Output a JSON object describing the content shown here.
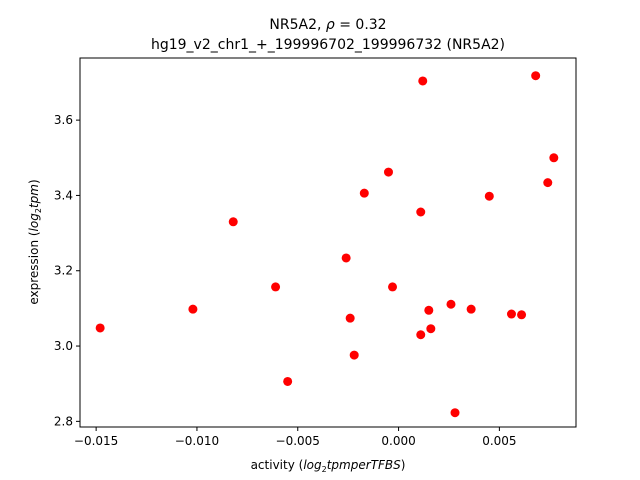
{
  "chart_data": {
    "type": "scatter",
    "title_line1_prefix": "NR5A2, ",
    "title_line1_symbol": "ρ",
    "title_line1_suffix": " = 0.32",
    "title_line2": "hg19_v2_chr1_+_199996702_199996732 (NR5A2)",
    "xlabel_prefix": "activity (",
    "xlabel_math": "log",
    "xlabel_sub": "2",
    "xlabel_math_rest": "tpmperTFBS",
    "xlabel_suffix": ")",
    "ylabel_prefix": "expression (",
    "ylabel_math": "log",
    "ylabel_sub": "2",
    "ylabel_math_rest": "tpm",
    "ylabel_suffix": ")",
    "xlim": [
      -0.0158,
      0.0088
    ],
    "ylim": [
      2.785,
      3.765
    ],
    "xticks": [
      -0.015,
      -0.01,
      -0.005,
      0.0,
      0.005
    ],
    "xtick_labels": [
      "−0.015",
      "−0.010",
      "−0.005",
      "0.000",
      "0.005"
    ],
    "yticks": [
      2.8,
      3.0,
      3.2,
      3.4,
      3.6
    ],
    "ytick_labels": [
      "2.8",
      "3.0",
      "3.2",
      "3.4",
      "3.6"
    ],
    "marker_color": "#ff0000",
    "grid": false,
    "points": [
      {
        "x": -0.0148,
        "y": 3.048
      },
      {
        "x": -0.0102,
        "y": 3.098
      },
      {
        "x": -0.0082,
        "y": 3.33
      },
      {
        "x": -0.0061,
        "y": 3.157
      },
      {
        "x": -0.0055,
        "y": 2.906
      },
      {
        "x": -0.0026,
        "y": 3.234
      },
      {
        "x": -0.0024,
        "y": 3.074
      },
      {
        "x": -0.0022,
        "y": 2.976
      },
      {
        "x": -0.0017,
        "y": 3.406
      },
      {
        "x": -0.0005,
        "y": 3.462
      },
      {
        "x": -0.0003,
        "y": 3.157
      },
      {
        "x": 0.0011,
        "y": 3.356
      },
      {
        "x": 0.0011,
        "y": 3.03
      },
      {
        "x": 0.0012,
        "y": 3.704
      },
      {
        "x": 0.0015,
        "y": 3.095
      },
      {
        "x": 0.0016,
        "y": 3.046
      },
      {
        "x": 0.0026,
        "y": 3.111
      },
      {
        "x": 0.0028,
        "y": 2.823
      },
      {
        "x": 0.0036,
        "y": 3.098
      },
      {
        "x": 0.0045,
        "y": 3.398
      },
      {
        "x": 0.0056,
        "y": 3.085
      },
      {
        "x": 0.0061,
        "y": 3.083
      },
      {
        "x": 0.0068,
        "y": 3.718
      },
      {
        "x": 0.0074,
        "y": 3.434
      },
      {
        "x": 0.0077,
        "y": 3.5
      }
    ]
  }
}
